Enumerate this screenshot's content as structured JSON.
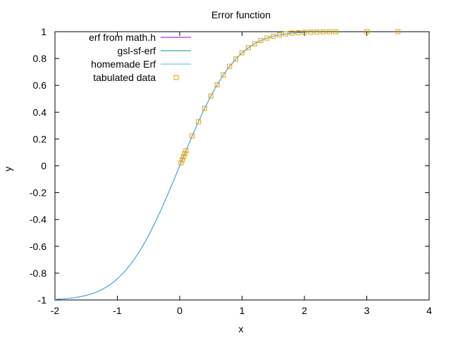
{
  "chart_data": {
    "type": "line",
    "title": "Error function",
    "xlabel": "x",
    "ylabel": "y",
    "xlim": [
      -2,
      4
    ],
    "ylim": [
      -1,
      1
    ],
    "xticks": [
      -2,
      -1,
      0,
      1,
      2,
      3,
      4
    ],
    "yticks": [
      -1,
      -0.8,
      -0.6,
      -0.4,
      -0.2,
      0,
      0.2,
      0.4,
      0.6,
      0.8,
      1
    ],
    "xtick_labels": [
      "-2",
      "-1",
      "0",
      "1",
      "2",
      "3",
      "4"
    ],
    "ytick_labels": [
      "-1",
      "-0.8",
      "-0.6",
      "-0.4",
      "-0.2",
      "0",
      "0.2",
      "0.4",
      "0.6",
      "0.8",
      "1"
    ],
    "grid": false,
    "legend_position": "top-left",
    "series": [
      {
        "name": "erf from math.h",
        "kind": "line",
        "color": "#9400d3",
        "x": [
          -2,
          -1.9,
          -1.8,
          -1.7,
          -1.6,
          -1.5,
          -1.4,
          -1.3,
          -1.2,
          -1.1,
          -1,
          -0.9,
          -0.8,
          -0.7,
          -0.6,
          -0.5,
          -0.4,
          -0.3,
          -0.2,
          -0.1,
          0,
          0.1,
          0.2,
          0.3,
          0.4,
          0.5,
          0.6,
          0.7,
          0.8,
          0.9,
          1,
          1.1,
          1.2,
          1.3,
          1.4,
          1.5,
          1.6,
          1.7,
          1.8,
          1.9,
          2
        ],
        "y": [
          -0.9953,
          -0.9928,
          -0.9891,
          -0.9838,
          -0.9763,
          -0.9661,
          -0.9523,
          -0.934,
          -0.9103,
          -0.8802,
          -0.8427,
          -0.7969,
          -0.7421,
          -0.6778,
          -0.6039,
          -0.5205,
          -0.4284,
          -0.3286,
          -0.2227,
          -0.1125,
          0,
          0.1125,
          0.2227,
          0.3286,
          0.4284,
          0.5205,
          0.6039,
          0.6778,
          0.7421,
          0.7969,
          0.8427,
          0.8802,
          0.9103,
          0.934,
          0.9523,
          0.9661,
          0.9763,
          0.9838,
          0.9891,
          0.9928,
          0.9953
        ]
      },
      {
        "name": "gsl-sf-erf",
        "kind": "line",
        "color": "#009e73",
        "x": [
          -2,
          -1.9,
          -1.8,
          -1.7,
          -1.6,
          -1.5,
          -1.4,
          -1.3,
          -1.2,
          -1.1,
          -1,
          -0.9,
          -0.8,
          -0.7,
          -0.6,
          -0.5,
          -0.4,
          -0.3,
          -0.2,
          -0.1,
          0,
          0.1,
          0.2,
          0.3,
          0.4,
          0.5,
          0.6,
          0.7,
          0.8,
          0.9,
          1,
          1.1,
          1.2,
          1.3,
          1.4,
          1.5,
          1.6,
          1.7,
          1.8,
          1.9,
          2
        ],
        "y": [
          -0.9953,
          -0.9928,
          -0.9891,
          -0.9838,
          -0.9763,
          -0.9661,
          -0.9523,
          -0.934,
          -0.9103,
          -0.8802,
          -0.8427,
          -0.7969,
          -0.7421,
          -0.6778,
          -0.6039,
          -0.5205,
          -0.4284,
          -0.3286,
          -0.2227,
          -0.1125,
          0,
          0.1125,
          0.2227,
          0.3286,
          0.4284,
          0.5205,
          0.6039,
          0.6778,
          0.7421,
          0.7969,
          0.8427,
          0.8802,
          0.9103,
          0.934,
          0.9523,
          0.9661,
          0.9763,
          0.9838,
          0.9891,
          0.9928,
          0.9953
        ]
      },
      {
        "name": "homemade Erf",
        "kind": "line",
        "color": "#56b4e9",
        "x": [
          -2,
          -1.9,
          -1.8,
          -1.7,
          -1.6,
          -1.5,
          -1.4,
          -1.3,
          -1.2,
          -1.1,
          -1,
          -0.9,
          -0.8,
          -0.7,
          -0.6,
          -0.5,
          -0.4,
          -0.3,
          -0.2,
          -0.1,
          0,
          0.1,
          0.2,
          0.3,
          0.4,
          0.5,
          0.6,
          0.7,
          0.8,
          0.9,
          1,
          1.1,
          1.2,
          1.3,
          1.4,
          1.5,
          1.6,
          1.7,
          1.8,
          1.9,
          2
        ],
        "y": [
          -0.9953,
          -0.9928,
          -0.9891,
          -0.9838,
          -0.9763,
          -0.9661,
          -0.9523,
          -0.934,
          -0.9103,
          -0.8802,
          -0.8427,
          -0.7969,
          -0.7421,
          -0.6778,
          -0.6039,
          -0.5205,
          -0.4284,
          -0.3286,
          -0.2227,
          -0.1125,
          0,
          0.1125,
          0.2227,
          0.3286,
          0.4284,
          0.5205,
          0.6039,
          0.6778,
          0.7421,
          0.7969,
          0.8427,
          0.8802,
          0.9103,
          0.934,
          0.9523,
          0.9661,
          0.9763,
          0.9838,
          0.9891,
          0.9928,
          0.9953
        ]
      },
      {
        "name": "tabulated data",
        "kind": "points",
        "marker": "open-square",
        "color": "#e69f00",
        "x": [
          0.02,
          0.04,
          0.06,
          0.08,
          0.1,
          0.2,
          0.3,
          0.4,
          0.5,
          0.6,
          0.7,
          0.8,
          0.9,
          1.0,
          1.1,
          1.2,
          1.3,
          1.4,
          1.5,
          1.6,
          1.7,
          1.8,
          1.9,
          2.0,
          2.1,
          2.2,
          2.3,
          2.4,
          2.5,
          3.0,
          3.5
        ],
        "y": [
          0.0226,
          0.0451,
          0.0676,
          0.0901,
          0.1125,
          0.2227,
          0.3286,
          0.4284,
          0.5205,
          0.6039,
          0.6778,
          0.7421,
          0.7969,
          0.8427,
          0.8802,
          0.9103,
          0.934,
          0.9523,
          0.9661,
          0.9763,
          0.9838,
          0.9891,
          0.9928,
          0.9953,
          0.997,
          0.9981,
          0.9989,
          0.9993,
          0.9996,
          1.0,
          1.0
        ]
      }
    ]
  }
}
